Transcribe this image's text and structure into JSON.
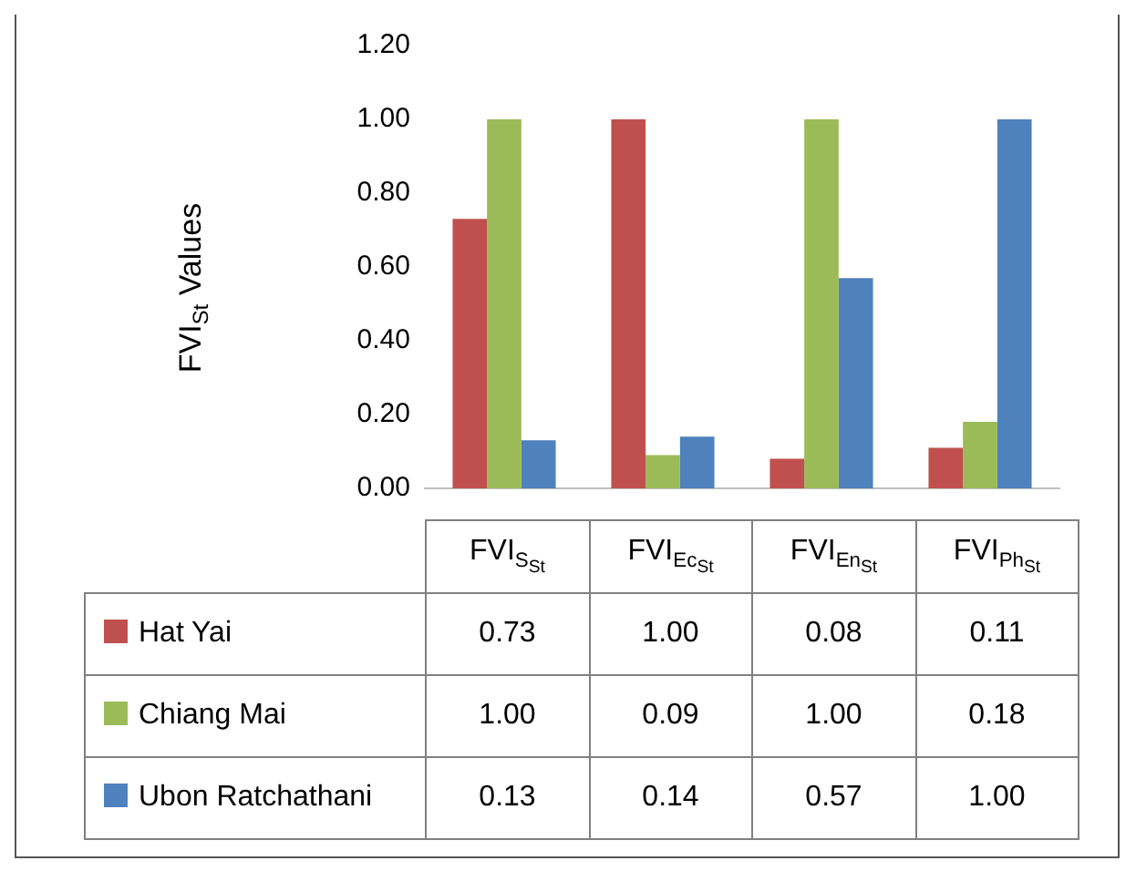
{
  "chart_data": {
    "type": "bar",
    "ylabel": "FVI$_{St}$ Values",
    "categories": [
      "FVI$_{S}$$_{St}$",
      "FVI$_{Ec}$$_{St}$",
      "FVI$_{En}$$_{St}$",
      "FVI$_{Ph}$$_{St}$"
    ],
    "series": [
      {
        "name": "Hat Yai",
        "color": "#c0504d",
        "values": [
          0.73,
          1.0,
          0.08,
          0.11
        ],
        "value_labels": [
          "0.73",
          "1.00",
          "0.08",
          "0.11"
        ]
      },
      {
        "name": "Chiang Mai",
        "color": "#9bbb59",
        "values": [
          1.0,
          0.09,
          1.0,
          0.18
        ],
        "value_labels": [
          "1.00",
          "0.09",
          "1.00",
          "0.18"
        ]
      },
      {
        "name": "Ubon Ratchathani",
        "color": "#4f81bd",
        "values": [
          0.13,
          0.14,
          0.57,
          1.0
        ],
        "value_labels": [
          "0.13",
          "0.14",
          "0.57",
          "1.00"
        ]
      }
    ],
    "ylim": [
      0,
      1.2
    ],
    "yticks": [
      {
        "value": 0,
        "label": "0.00"
      },
      {
        "value": 0.2,
        "label": "0.20"
      },
      {
        "value": 0.4,
        "label": "0.40"
      },
      {
        "value": 0.6,
        "label": "0.60"
      },
      {
        "value": 0.8,
        "label": "0.80"
      },
      {
        "value": 1.0,
        "label": "1.00"
      },
      {
        "value": 1.2,
        "label": "1.20"
      }
    ],
    "grid": false,
    "legend": "bottom"
  }
}
